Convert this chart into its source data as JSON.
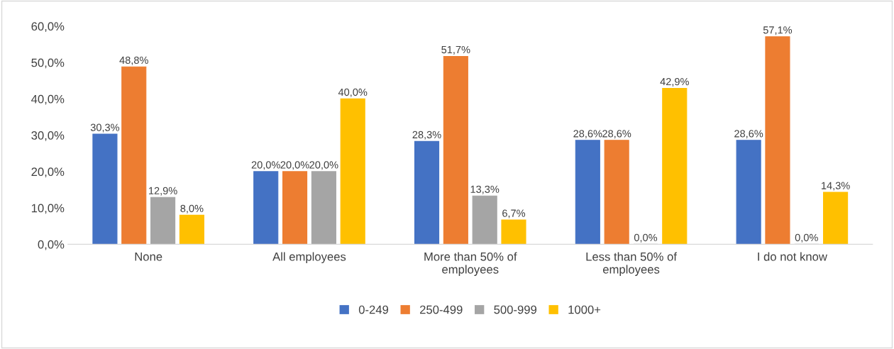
{
  "chart_data": {
    "type": "bar",
    "categories": [
      "None",
      "All employees",
      "More than 50% of\nemployees",
      "Less than 50% of\nemployees",
      "I do not know"
    ],
    "series": [
      {
        "name": "0-249",
        "color": "#4472c4",
        "values": [
          30.3,
          20.0,
          28.3,
          28.6,
          28.6
        ],
        "value_labels": [
          "30,3%",
          "20,0%",
          "28,3%",
          "28,6%",
          "28,6%"
        ]
      },
      {
        "name": "250-499",
        "color": "#ed7d31",
        "values": [
          48.8,
          20.0,
          51.7,
          28.6,
          57.1
        ],
        "value_labels": [
          "48,8%",
          "20,0%",
          "51,7%",
          "28,6%",
          "57,1%"
        ]
      },
      {
        "name": "500-999",
        "color": "#a5a5a5",
        "values": [
          12.9,
          20.0,
          13.3,
          0.0,
          0.0
        ],
        "value_labels": [
          "12,9%",
          "20,0%",
          "13,3%",
          "0,0%",
          "0,0%"
        ]
      },
      {
        "name": "1000+",
        "color": "#ffc000",
        "values": [
          8.0,
          40.0,
          6.7,
          42.9,
          14.3
        ],
        "value_labels": [
          "8,0%",
          "40,0%",
          "6,7%",
          "42,9%",
          "14,3%"
        ]
      }
    ],
    "ylim": [
      0,
      60
    ],
    "yticks": [
      {
        "value": 0,
        "label": "0,0%"
      },
      {
        "value": 10,
        "label": "10,0%"
      },
      {
        "value": 20,
        "label": "20,0%"
      },
      {
        "value": 30,
        "label": "30,0%"
      },
      {
        "value": 40,
        "label": "40,0%"
      },
      {
        "value": 50,
        "label": "50,0%"
      },
      {
        "value": 60,
        "label": "60,0%"
      }
    ],
    "grid": false,
    "legend": "bottom"
  }
}
